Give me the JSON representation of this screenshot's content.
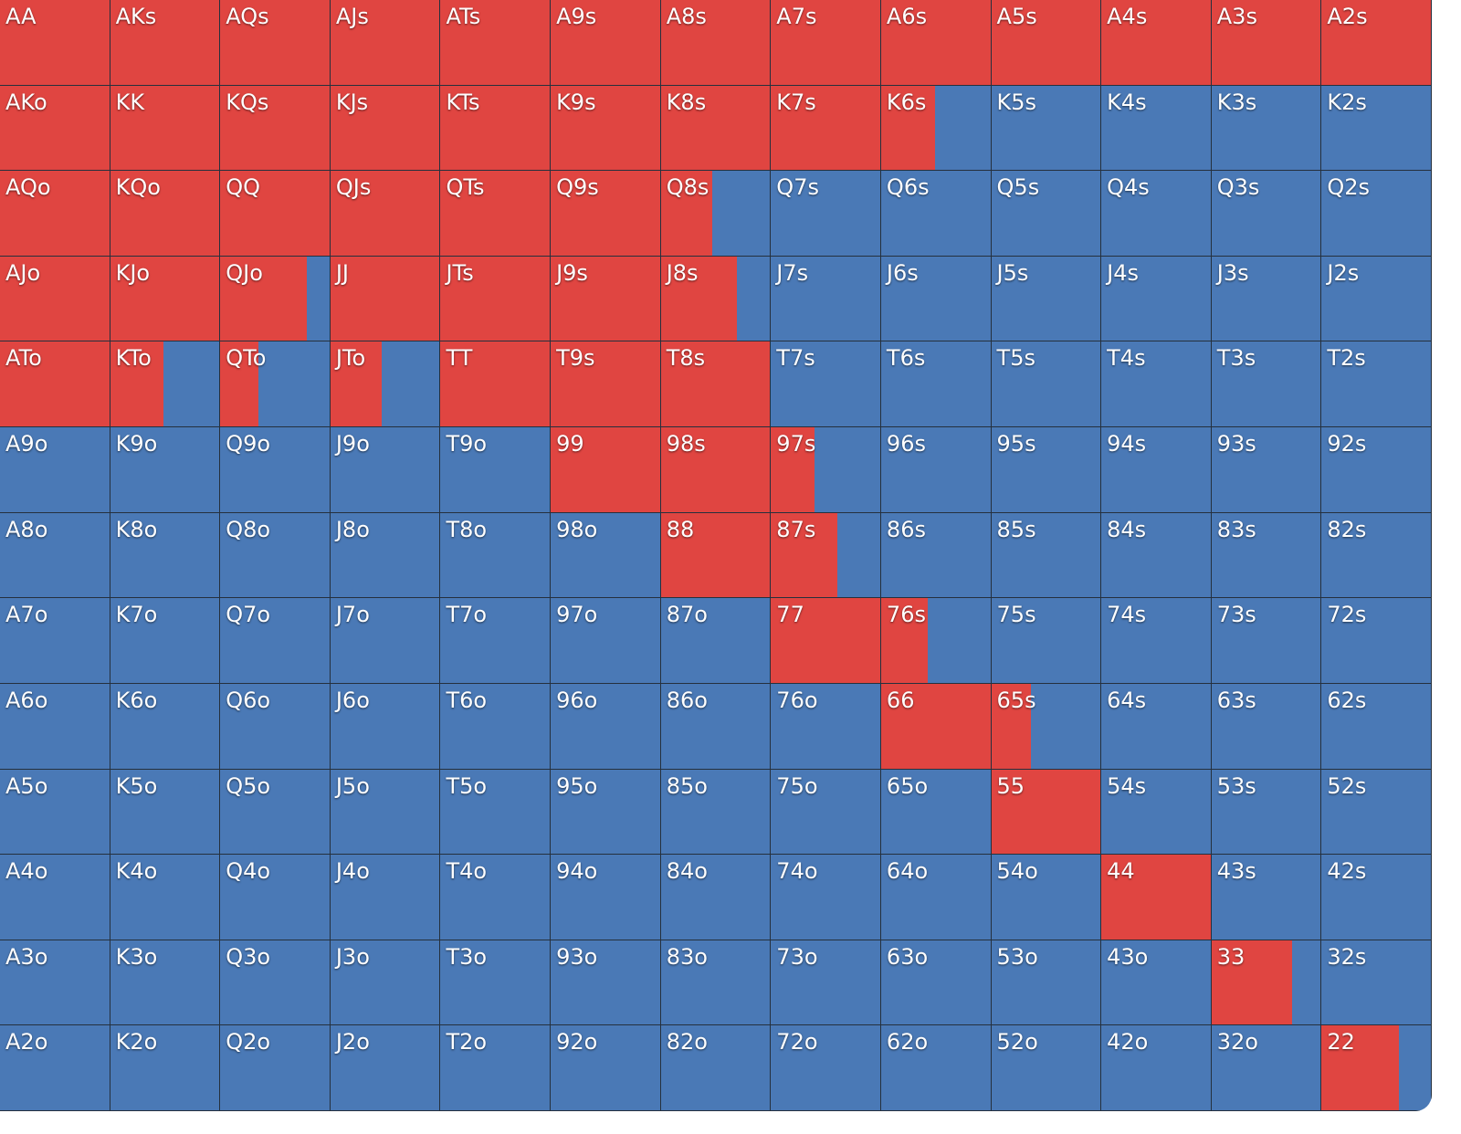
{
  "grid": {
    "colors": {
      "raise": "#e04541",
      "other": "#4a79b6"
    },
    "hands": [
      [
        "AA",
        "AKs",
        "AQs",
        "AJs",
        "ATs",
        "A9s",
        "A8s",
        "A7s",
        "A6s",
        "A5s",
        "A4s",
        "A3s",
        "A2s"
      ],
      [
        "AKo",
        "KK",
        "KQs",
        "KJs",
        "KTs",
        "K9s",
        "K8s",
        "K7s",
        "K6s",
        "K5s",
        "K4s",
        "K3s",
        "K2s"
      ],
      [
        "AQo",
        "KQo",
        "QQ",
        "QJs",
        "QTs",
        "Q9s",
        "Q8s",
        "Q7s",
        "Q6s",
        "Q5s",
        "Q4s",
        "Q3s",
        "Q2s"
      ],
      [
        "AJo",
        "KJo",
        "QJo",
        "JJ",
        "JTs",
        "J9s",
        "J8s",
        "J7s",
        "J6s",
        "J5s",
        "J4s",
        "J3s",
        "J2s"
      ],
      [
        "ATo",
        "KTo",
        "QTo",
        "JTo",
        "TT",
        "T9s",
        "T8s",
        "T7s",
        "T6s",
        "T5s",
        "T4s",
        "T3s",
        "T2s"
      ],
      [
        "A9o",
        "K9o",
        "Q9o",
        "J9o",
        "T9o",
        "99",
        "98s",
        "97s",
        "96s",
        "95s",
        "94s",
        "93s",
        "92s"
      ],
      [
        "A8o",
        "K8o",
        "Q8o",
        "J8o",
        "T8o",
        "98o",
        "88",
        "87s",
        "86s",
        "85s",
        "84s",
        "83s",
        "82s"
      ],
      [
        "A7o",
        "K7o",
        "Q7o",
        "J7o",
        "T7o",
        "97o",
        "87o",
        "77",
        "76s",
        "75s",
        "74s",
        "73s",
        "72s"
      ],
      [
        "A6o",
        "K6o",
        "Q6o",
        "J6o",
        "T6o",
        "96o",
        "86o",
        "76o",
        "66",
        "65s",
        "64s",
        "63s",
        "62s"
      ],
      [
        "A5o",
        "K5o",
        "Q5o",
        "J5o",
        "T5o",
        "95o",
        "85o",
        "75o",
        "65o",
        "55",
        "54s",
        "53s",
        "52s"
      ],
      [
        "A4o",
        "K4o",
        "Q4o",
        "J4o",
        "T4o",
        "94o",
        "84o",
        "74o",
        "64o",
        "54o",
        "44",
        "43s",
        "42s"
      ],
      [
        "A3o",
        "K3o",
        "Q3o",
        "J3o",
        "T3o",
        "93o",
        "83o",
        "73o",
        "63o",
        "53o",
        "43o",
        "33",
        "32s"
      ],
      [
        "A2o",
        "K2o",
        "Q2o",
        "J2o",
        "T2o",
        "92o",
        "82o",
        "72o",
        "62o",
        "52o",
        "42o",
        "32o",
        "22"
      ]
    ],
    "raise": [
      [
        100,
        100,
        100,
        100,
        100,
        100,
        100,
        100,
        100,
        100,
        100,
        100,
        100
      ],
      [
        100,
        100,
        100,
        100,
        100,
        100,
        100,
        100,
        49,
        0,
        0,
        0,
        0
      ],
      [
        100,
        100,
        100,
        100,
        100,
        100,
        47,
        0,
        0,
        0,
        0,
        0,
        0
      ],
      [
        100,
        100,
        79,
        100,
        100,
        100,
        70,
        0,
        0,
        0,
        0,
        0,
        0
      ],
      [
        100,
        49,
        35,
        47,
        100,
        100,
        100,
        0,
        0,
        0,
        0,
        0,
        0
      ],
      [
        0,
        0,
        0,
        0,
        0,
        100,
        100,
        40,
        0,
        0,
        0,
        0,
        0
      ],
      [
        0,
        0,
        0,
        0,
        0,
        0,
        100,
        61,
        0,
        0,
        0,
        0,
        0
      ],
      [
        0,
        0,
        0,
        0,
        0,
        0,
        0,
        100,
        43,
        0,
        0,
        0,
        0
      ],
      [
        0,
        0,
        0,
        0,
        0,
        0,
        0,
        0,
        100,
        36,
        0,
        0,
        0
      ],
      [
        0,
        0,
        0,
        0,
        0,
        0,
        0,
        0,
        0,
        100,
        0,
        0,
        0
      ],
      [
        0,
        0,
        0,
        0,
        0,
        0,
        0,
        0,
        0,
        0,
        100,
        0,
        0
      ],
      [
        0,
        0,
        0,
        0,
        0,
        0,
        0,
        0,
        0,
        0,
        0,
        74,
        0
      ],
      [
        0,
        0,
        0,
        0,
        0,
        0,
        0,
        0,
        0,
        0,
        0,
        0,
        71
      ]
    ]
  }
}
